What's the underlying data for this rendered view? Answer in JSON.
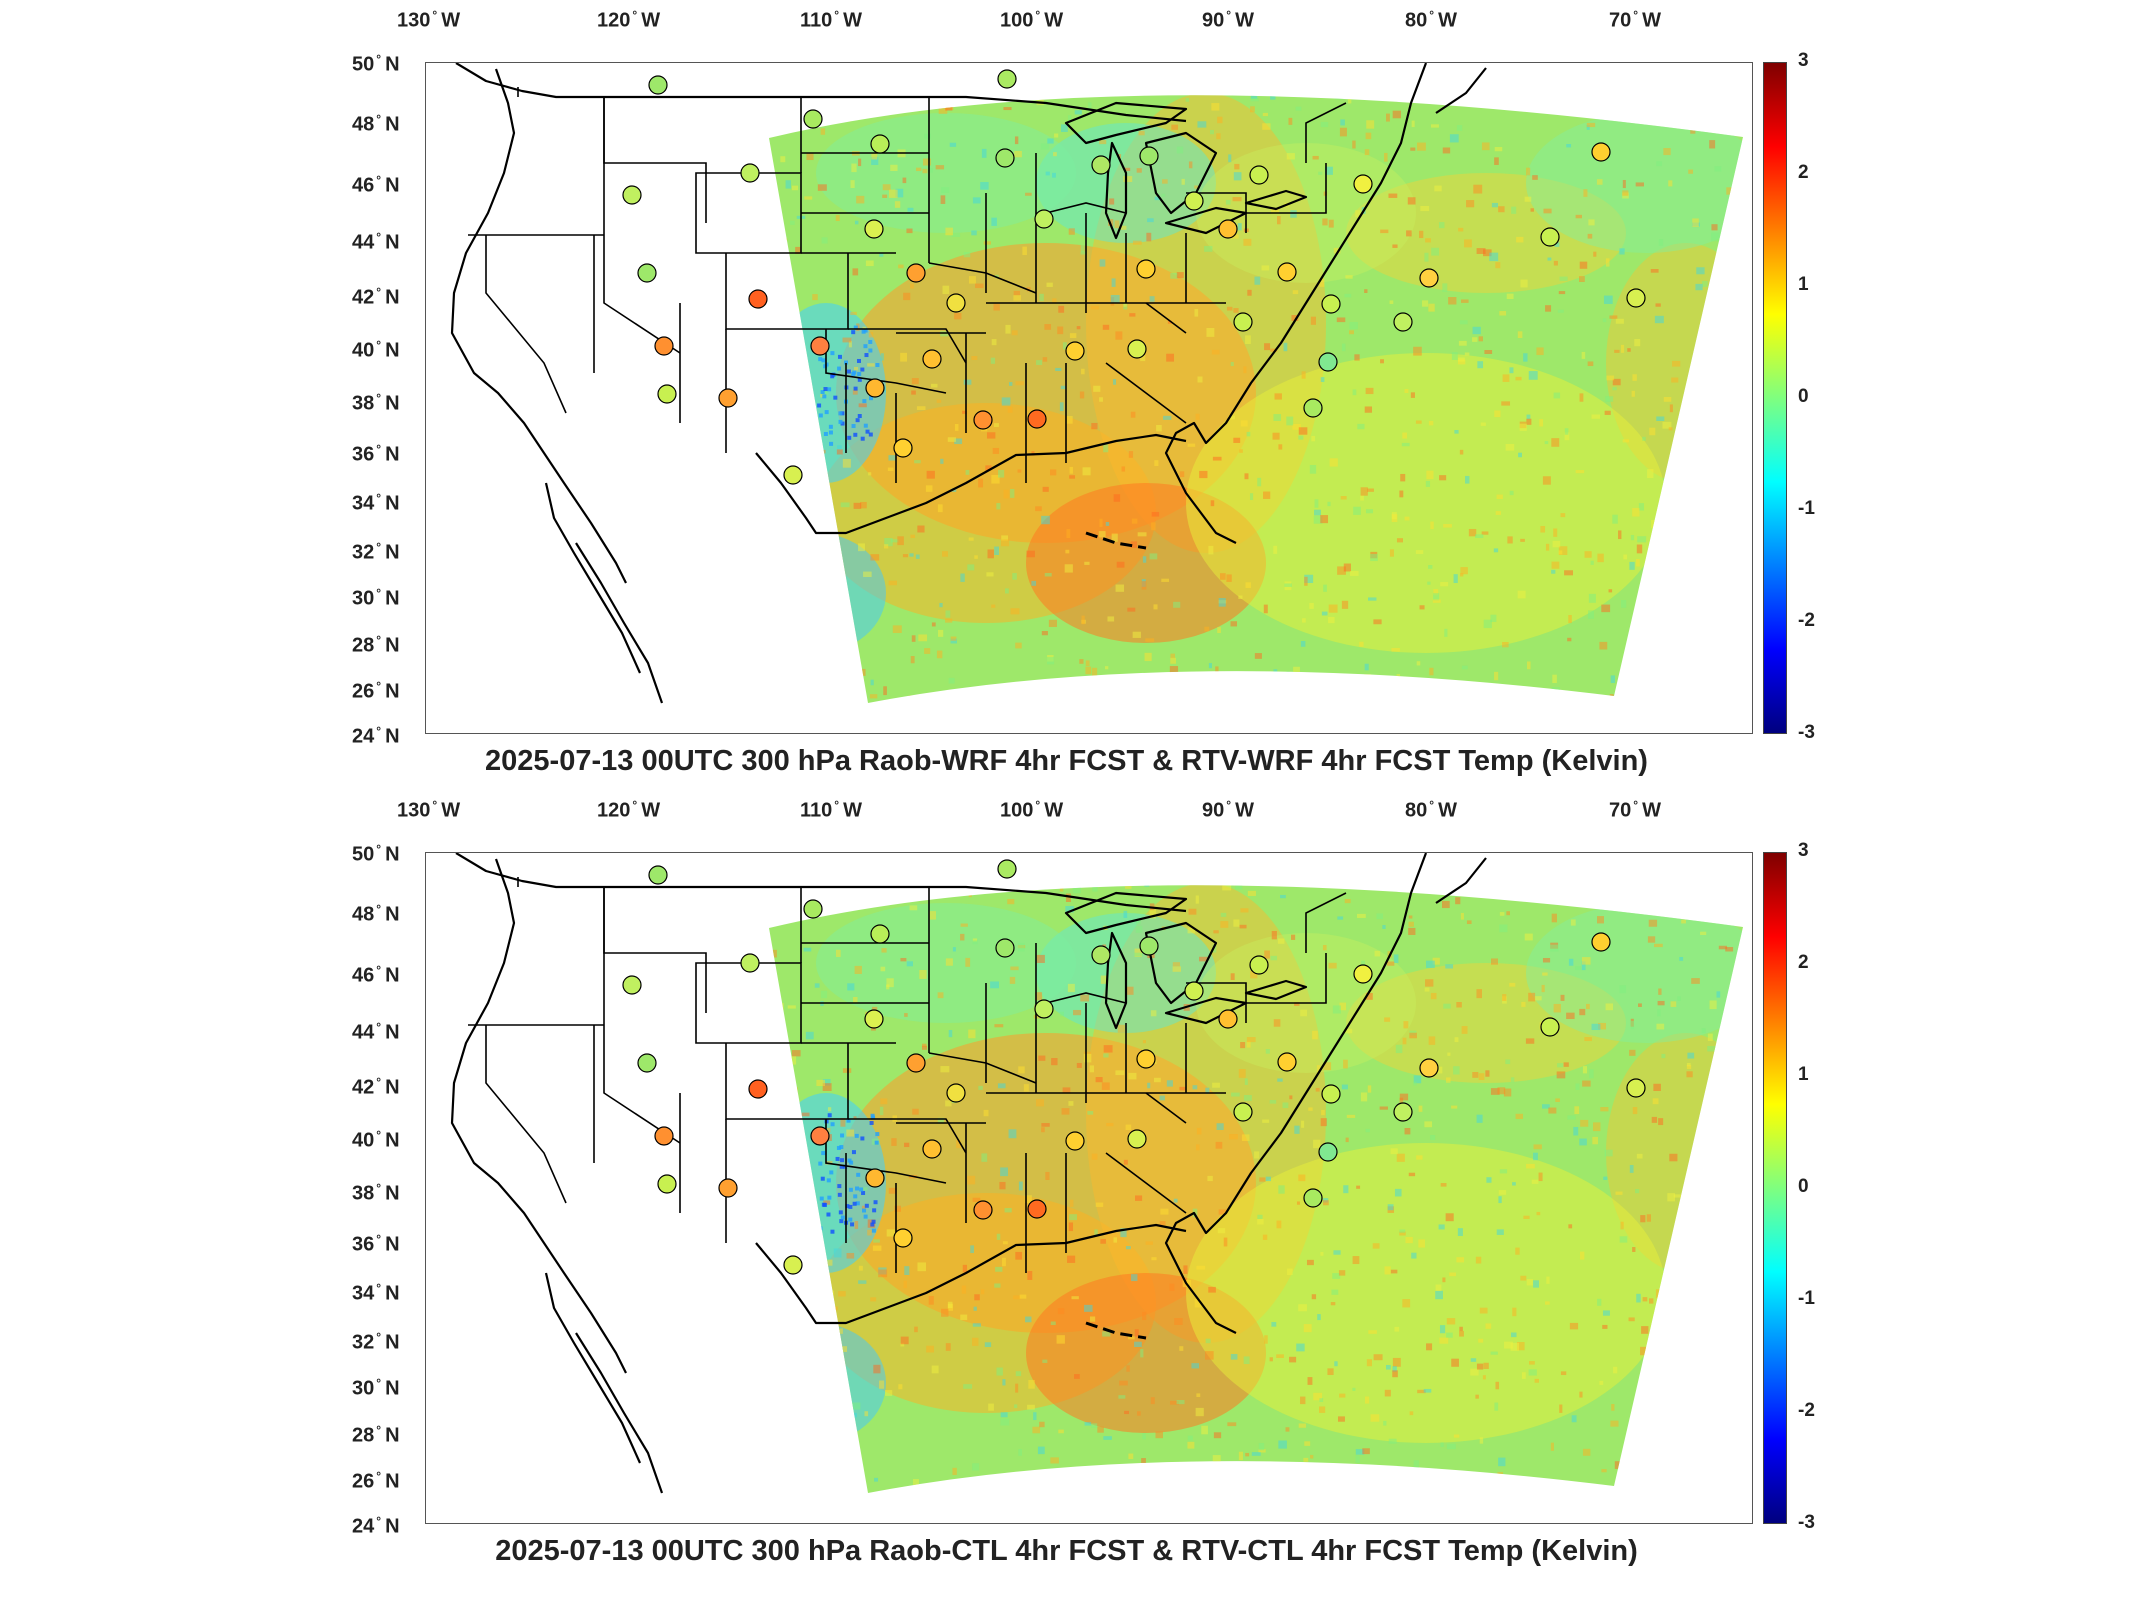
{
  "panels": [
    {
      "id": "wrf",
      "title": "2025-07-13 00UTC 300 hPa Raob-WRF 4hr FCST & RTV-WRF 4hr FCST Temp (Kelvin)"
    },
    {
      "id": "ctl",
      "title": "2025-07-13 00UTC 300 hPa Raob-CTL 4hr FCST & RTV-CTL 4hr FCST Temp (Kelvin)"
    }
  ],
  "axes": {
    "lon_ticks": [
      {
        "value": "130",
        "hemi": "W"
      },
      {
        "value": "120",
        "hemi": "W"
      },
      {
        "value": "110",
        "hemi": "W"
      },
      {
        "value": "100",
        "hemi": "W"
      },
      {
        "value": "90",
        "hemi": "W"
      },
      {
        "value": "80",
        "hemi": "W"
      },
      {
        "value": "70",
        "hemi": "W"
      }
    ],
    "lat_ticks": [
      {
        "value": "50",
        "hemi": "N"
      },
      {
        "value": "48",
        "hemi": "N"
      },
      {
        "value": "46",
        "hemi": "N"
      },
      {
        "value": "44",
        "hemi": "N"
      },
      {
        "value": "42",
        "hemi": "N"
      },
      {
        "value": "40",
        "hemi": "N"
      },
      {
        "value": "38",
        "hemi": "N"
      },
      {
        "value": "36",
        "hemi": "N"
      },
      {
        "value": "34",
        "hemi": "N"
      },
      {
        "value": "32",
        "hemi": "N"
      },
      {
        "value": "30",
        "hemi": "N"
      },
      {
        "value": "28",
        "hemi": "N"
      },
      {
        "value": "26",
        "hemi": "N"
      },
      {
        "value": "24",
        "hemi": "N"
      }
    ],
    "degree_symbol": "°"
  },
  "colorbar": {
    "min": -3,
    "max": 3,
    "ticks": [
      "3",
      "2",
      "1",
      "0",
      "-1",
      "-2",
      "-3"
    ],
    "colormap": "jet",
    "colors": [
      "#00007f",
      "#0000ff",
      "#007fff",
      "#00ffff",
      "#7fff7f",
      "#ffff00",
      "#ff7f00",
      "#ff0000",
      "#7f0000"
    ]
  },
  "map": {
    "projection": "lambert-conformal",
    "field_background": "#9ee86a",
    "land_fill": "#ffffff",
    "boundary_color": "#000000"
  }
}
